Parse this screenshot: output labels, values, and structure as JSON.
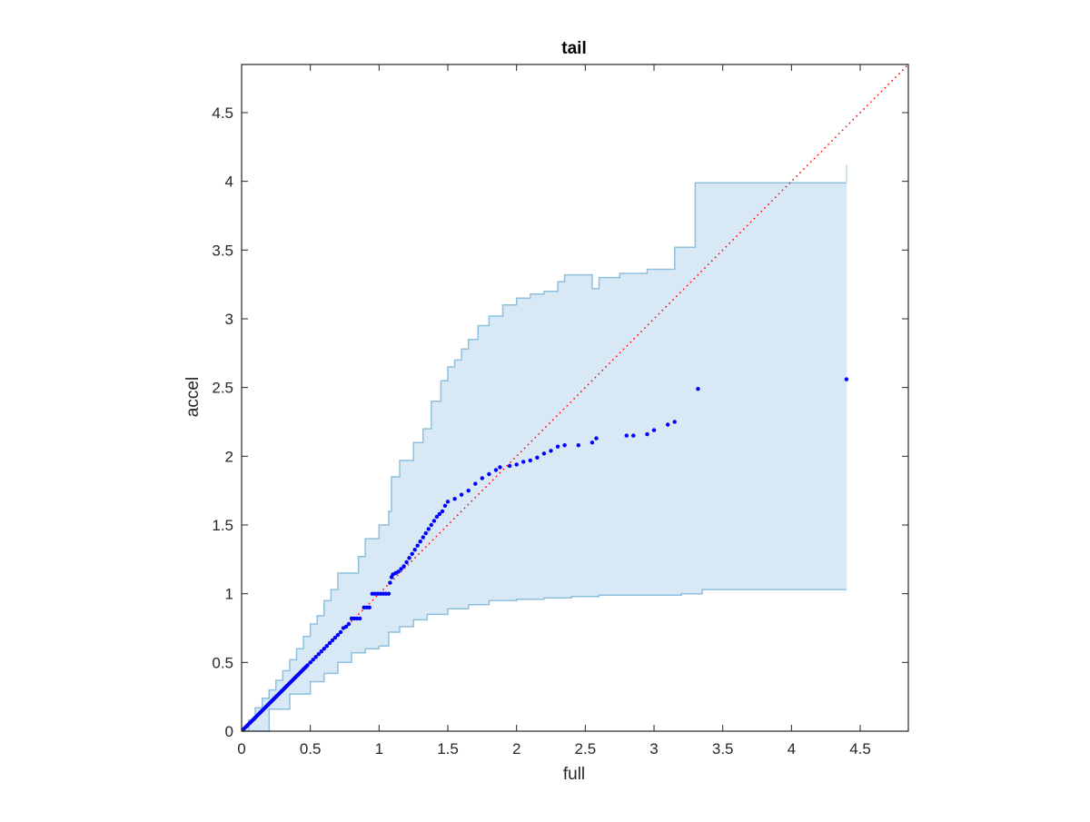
{
  "chart_data": {
    "type": "scatter",
    "title": "tail",
    "xlabel": "full",
    "ylabel": "accel",
    "xlim": [
      0,
      4.85
    ],
    "ylim": [
      0,
      4.85
    ],
    "xticks": [
      0,
      0.5,
      1,
      1.5,
      2,
      2.5,
      3,
      3.5,
      4,
      4.5
    ],
    "yticks": [
      0,
      0.5,
      1,
      1.5,
      2,
      2.5,
      3,
      3.5,
      4,
      4.5
    ],
    "grid": false,
    "legend": "none",
    "colors": {
      "points": "#0000ff",
      "reference_line": "#ff0000",
      "band_fill": "#d9e8f5",
      "band_edge": "#8dc0de",
      "axes": "#262626"
    },
    "reference_line": {
      "style": "dotted",
      "x": [
        0,
        4.85
      ],
      "y": [
        0,
        4.85
      ]
    },
    "band": {
      "upper": [
        [
          0,
          0
        ],
        [
          0.05,
          0.08
        ],
        [
          0.1,
          0.17
        ],
        [
          0.15,
          0.24
        ],
        [
          0.2,
          0.3
        ],
        [
          0.25,
          0.37
        ],
        [
          0.3,
          0.44
        ],
        [
          0.35,
          0.52
        ],
        [
          0.4,
          0.6
        ],
        [
          0.45,
          0.69
        ],
        [
          0.5,
          0.78
        ],
        [
          0.55,
          0.84
        ],
        [
          0.6,
          0.95
        ],
        [
          0.65,
          1.03
        ],
        [
          0.7,
          1.15
        ],
        [
          0.8,
          1.15
        ],
        [
          0.85,
          1.27
        ],
        [
          0.9,
          1.4
        ],
        [
          0.97,
          1.4
        ],
        [
          1.0,
          1.5
        ],
        [
          1.07,
          1.6
        ],
        [
          1.09,
          1.85
        ],
        [
          1.15,
          1.97
        ],
        [
          1.25,
          2.1
        ],
        [
          1.32,
          2.2
        ],
        [
          1.38,
          2.4
        ],
        [
          1.45,
          2.55
        ],
        [
          1.5,
          2.65
        ],
        [
          1.55,
          2.7
        ],
        [
          1.6,
          2.78
        ],
        [
          1.65,
          2.85
        ],
        [
          1.72,
          2.95
        ],
        [
          1.8,
          3.02
        ],
        [
          1.9,
          3.1
        ],
        [
          2.0,
          3.15
        ],
        [
          2.1,
          3.18
        ],
        [
          2.2,
          3.2
        ],
        [
          2.3,
          3.27
        ],
        [
          2.35,
          3.32
        ],
        [
          2.5,
          3.32
        ],
        [
          2.55,
          3.22
        ],
        [
          2.6,
          3.3
        ],
        [
          2.75,
          3.33
        ],
        [
          2.95,
          3.36
        ],
        [
          3.15,
          3.52
        ],
        [
          3.3,
          3.99
        ],
        [
          4.4,
          4.12
        ]
      ],
      "lower": [
        [
          0,
          0
        ],
        [
          0.2,
          0.16
        ],
        [
          0.35,
          0.27
        ],
        [
          0.5,
          0.36
        ],
        [
          0.6,
          0.42
        ],
        [
          0.7,
          0.5
        ],
        [
          0.8,
          0.57
        ],
        [
          0.9,
          0.6
        ],
        [
          1.0,
          0.62
        ],
        [
          1.07,
          0.72
        ],
        [
          1.15,
          0.76
        ],
        [
          1.25,
          0.81
        ],
        [
          1.35,
          0.85
        ],
        [
          1.5,
          0.89
        ],
        [
          1.65,
          0.92
        ],
        [
          1.8,
          0.95
        ],
        [
          2.0,
          0.96
        ],
        [
          2.2,
          0.97
        ],
        [
          2.4,
          0.98
        ],
        [
          2.6,
          0.99
        ],
        [
          3.0,
          0.99
        ],
        [
          3.2,
          1.0
        ],
        [
          3.35,
          1.03
        ],
        [
          4.4,
          1.03
        ]
      ]
    },
    "points": [
      [
        0.01,
        0.01
      ],
      [
        0.02,
        0.02
      ],
      [
        0.03,
        0.03
      ],
      [
        0.04,
        0.04
      ],
      [
        0.05,
        0.05
      ],
      [
        0.06,
        0.06
      ],
      [
        0.07,
        0.07
      ],
      [
        0.08,
        0.08
      ],
      [
        0.09,
        0.09
      ],
      [
        0.1,
        0.1
      ],
      [
        0.11,
        0.11
      ],
      [
        0.12,
        0.12
      ],
      [
        0.13,
        0.13
      ],
      [
        0.14,
        0.14
      ],
      [
        0.15,
        0.15
      ],
      [
        0.16,
        0.16
      ],
      [
        0.17,
        0.17
      ],
      [
        0.18,
        0.18
      ],
      [
        0.19,
        0.19
      ],
      [
        0.2,
        0.2
      ],
      [
        0.21,
        0.21
      ],
      [
        0.22,
        0.22
      ],
      [
        0.23,
        0.23
      ],
      [
        0.24,
        0.24
      ],
      [
        0.25,
        0.25
      ],
      [
        0.26,
        0.26
      ],
      [
        0.27,
        0.27
      ],
      [
        0.28,
        0.28
      ],
      [
        0.29,
        0.29
      ],
      [
        0.3,
        0.3
      ],
      [
        0.31,
        0.31
      ],
      [
        0.32,
        0.32
      ],
      [
        0.33,
        0.33
      ],
      [
        0.34,
        0.34
      ],
      [
        0.35,
        0.35
      ],
      [
        0.36,
        0.36
      ],
      [
        0.37,
        0.37
      ],
      [
        0.38,
        0.38
      ],
      [
        0.39,
        0.39
      ],
      [
        0.4,
        0.4
      ],
      [
        0.41,
        0.41
      ],
      [
        0.42,
        0.42
      ],
      [
        0.43,
        0.43
      ],
      [
        0.44,
        0.44
      ],
      [
        0.45,
        0.45
      ],
      [
        0.46,
        0.46
      ],
      [
        0.47,
        0.47
      ],
      [
        0.48,
        0.48
      ],
      [
        0.5,
        0.5
      ],
      [
        0.52,
        0.52
      ],
      [
        0.54,
        0.54
      ],
      [
        0.56,
        0.56
      ],
      [
        0.58,
        0.58
      ],
      [
        0.6,
        0.6
      ],
      [
        0.62,
        0.62
      ],
      [
        0.64,
        0.64
      ],
      [
        0.66,
        0.66
      ],
      [
        0.68,
        0.68
      ],
      [
        0.7,
        0.7
      ],
      [
        0.72,
        0.72
      ],
      [
        0.74,
        0.75
      ],
      [
        0.76,
        0.76
      ],
      [
        0.78,
        0.78
      ],
      [
        0.8,
        0.82
      ],
      [
        0.82,
        0.82
      ],
      [
        0.84,
        0.82
      ],
      [
        0.86,
        0.82
      ],
      [
        0.89,
        0.9
      ],
      [
        0.91,
        0.9
      ],
      [
        0.93,
        0.9
      ],
      [
        0.95,
        1.0
      ],
      [
        0.97,
        1.0
      ],
      [
        0.99,
        1.0
      ],
      [
        1.01,
        1.0
      ],
      [
        1.03,
        1.0
      ],
      [
        1.05,
        1.0
      ],
      [
        1.07,
        1.0
      ],
      [
        1.08,
        1.08
      ],
      [
        1.09,
        1.12
      ],
      [
        1.1,
        1.14
      ],
      [
        1.12,
        1.15
      ],
      [
        1.14,
        1.16
      ],
      [
        1.16,
        1.18
      ],
      [
        1.18,
        1.2
      ],
      [
        1.2,
        1.23
      ],
      [
        1.22,
        1.26
      ],
      [
        1.24,
        1.29
      ],
      [
        1.26,
        1.32
      ],
      [
        1.28,
        1.35
      ],
      [
        1.3,
        1.38
      ],
      [
        1.32,
        1.41
      ],
      [
        1.34,
        1.44
      ],
      [
        1.36,
        1.47
      ],
      [
        1.38,
        1.5
      ],
      [
        1.4,
        1.53
      ],
      [
        1.42,
        1.56
      ],
      [
        1.44,
        1.58
      ],
      [
        1.46,
        1.6
      ],
      [
        1.48,
        1.64
      ],
      [
        1.5,
        1.67
      ],
      [
        1.55,
        1.69
      ],
      [
        1.6,
        1.72
      ],
      [
        1.65,
        1.75
      ],
      [
        1.7,
        1.8
      ],
      [
        1.75,
        1.84
      ],
      [
        1.8,
        1.87
      ],
      [
        1.85,
        1.9
      ],
      [
        1.88,
        1.92
      ],
      [
        1.95,
        1.93
      ],
      [
        2.0,
        1.94
      ],
      [
        2.05,
        1.96
      ],
      [
        2.1,
        1.97
      ],
      [
        2.15,
        1.99
      ],
      [
        2.2,
        2.02
      ],
      [
        2.25,
        2.04
      ],
      [
        2.3,
        2.07
      ],
      [
        2.35,
        2.08
      ],
      [
        2.45,
        2.08
      ],
      [
        2.55,
        2.1
      ],
      [
        2.58,
        2.13
      ],
      [
        2.8,
        2.15
      ],
      [
        2.85,
        2.15
      ],
      [
        2.95,
        2.16
      ],
      [
        3.0,
        2.19
      ],
      [
        3.1,
        2.23
      ],
      [
        3.15,
        2.25
      ],
      [
        3.32,
        2.49
      ],
      [
        4.4,
        2.56
      ]
    ]
  }
}
